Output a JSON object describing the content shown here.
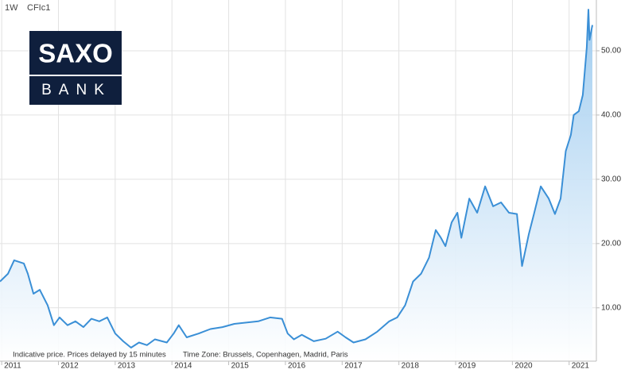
{
  "header": {
    "interval": "1W",
    "symbol": "CFIc1"
  },
  "logo": {
    "top": "SAXO",
    "bottom": "BANK"
  },
  "footer": {
    "notice": "Indicative price. Prices delayed by 15 minutes",
    "timezone": "Time Zone: Brussels, Copenhagen, Madrid, Paris"
  },
  "chart_data": {
    "type": "area",
    "color": "#3a8fd6",
    "x": [
      2010.97,
      2011.11,
      2011.22,
      2011.39,
      2011.46,
      2011.56,
      2011.67,
      2011.81,
      2011.92,
      2012.02,
      2012.16,
      2012.3,
      2012.44,
      2012.58,
      2012.72,
      2012.86,
      2013.0,
      2013.14,
      2013.28,
      2013.42,
      2013.56,
      2013.7,
      2013.91,
      2014.03,
      2014.12,
      2014.26,
      2014.47,
      2014.68,
      2014.89,
      2015.1,
      2015.31,
      2015.52,
      2015.73,
      2015.94,
      2016.04,
      2016.15,
      2016.29,
      2016.5,
      2016.71,
      2016.92,
      2017.06,
      2017.2,
      2017.41,
      2017.62,
      2017.83,
      2017.97,
      2018.11,
      2018.25,
      2018.39,
      2018.53,
      2018.65,
      2018.74,
      2018.82,
      2018.93,
      2019.03,
      2019.1,
      2019.24,
      2019.38,
      2019.52,
      2019.66,
      2019.8,
      2019.94,
      2020.08,
      2020.17,
      2020.29,
      2020.38,
      2020.5,
      2020.64,
      2020.75,
      2020.85,
      2020.94,
      2021.03,
      2021.08,
      2021.17,
      2021.24,
      2021.31,
      2021.34,
      2021.36,
      2021.41
    ],
    "values": [
      14.1,
      15.3,
      17.4,
      16.9,
      15.3,
      12.2,
      12.8,
      10.4,
      7.3,
      8.5,
      7.3,
      7.9,
      7.0,
      8.3,
      7.9,
      8.5,
      6.0,
      4.8,
      3.8,
      4.6,
      4.2,
      5.1,
      4.6,
      6.0,
      7.3,
      5.4,
      6.0,
      6.7,
      7.0,
      7.5,
      7.7,
      7.9,
      8.5,
      8.3,
      6.0,
      5.1,
      5.8,
      4.8,
      5.2,
      6.3,
      5.4,
      4.6,
      5.1,
      6.3,
      7.9,
      8.5,
      10.4,
      14.1,
      15.3,
      17.8,
      22.1,
      20.9,
      19.6,
      23.3,
      24.8,
      20.9,
      27.0,
      24.8,
      28.9,
      25.8,
      26.4,
      24.8,
      24.6,
      16.5,
      21.5,
      24.6,
      28.9,
      27.0,
      24.6,
      27.0,
      34.4,
      36.9,
      40.0,
      40.6,
      43.1,
      50.5,
      56.4,
      51.7,
      54.0
    ],
    "xlim": [
      2010.97,
      2021.48
    ],
    "xticks": [
      2011,
      2012,
      2013,
      2014,
      2015,
      2016,
      2017,
      2018,
      2019,
      2020,
      2021
    ],
    "ylim": [
      1.7,
      57.9
    ],
    "yticks": [
      {
        "value": 10,
        "label": "10.00"
      },
      {
        "value": 20,
        "label": "20.00"
      },
      {
        "value": 30,
        "label": "30.00"
      },
      {
        "value": 40,
        "label": "40.00"
      },
      {
        "value": 50,
        "label": "50.00"
      }
    ],
    "grid": true
  }
}
